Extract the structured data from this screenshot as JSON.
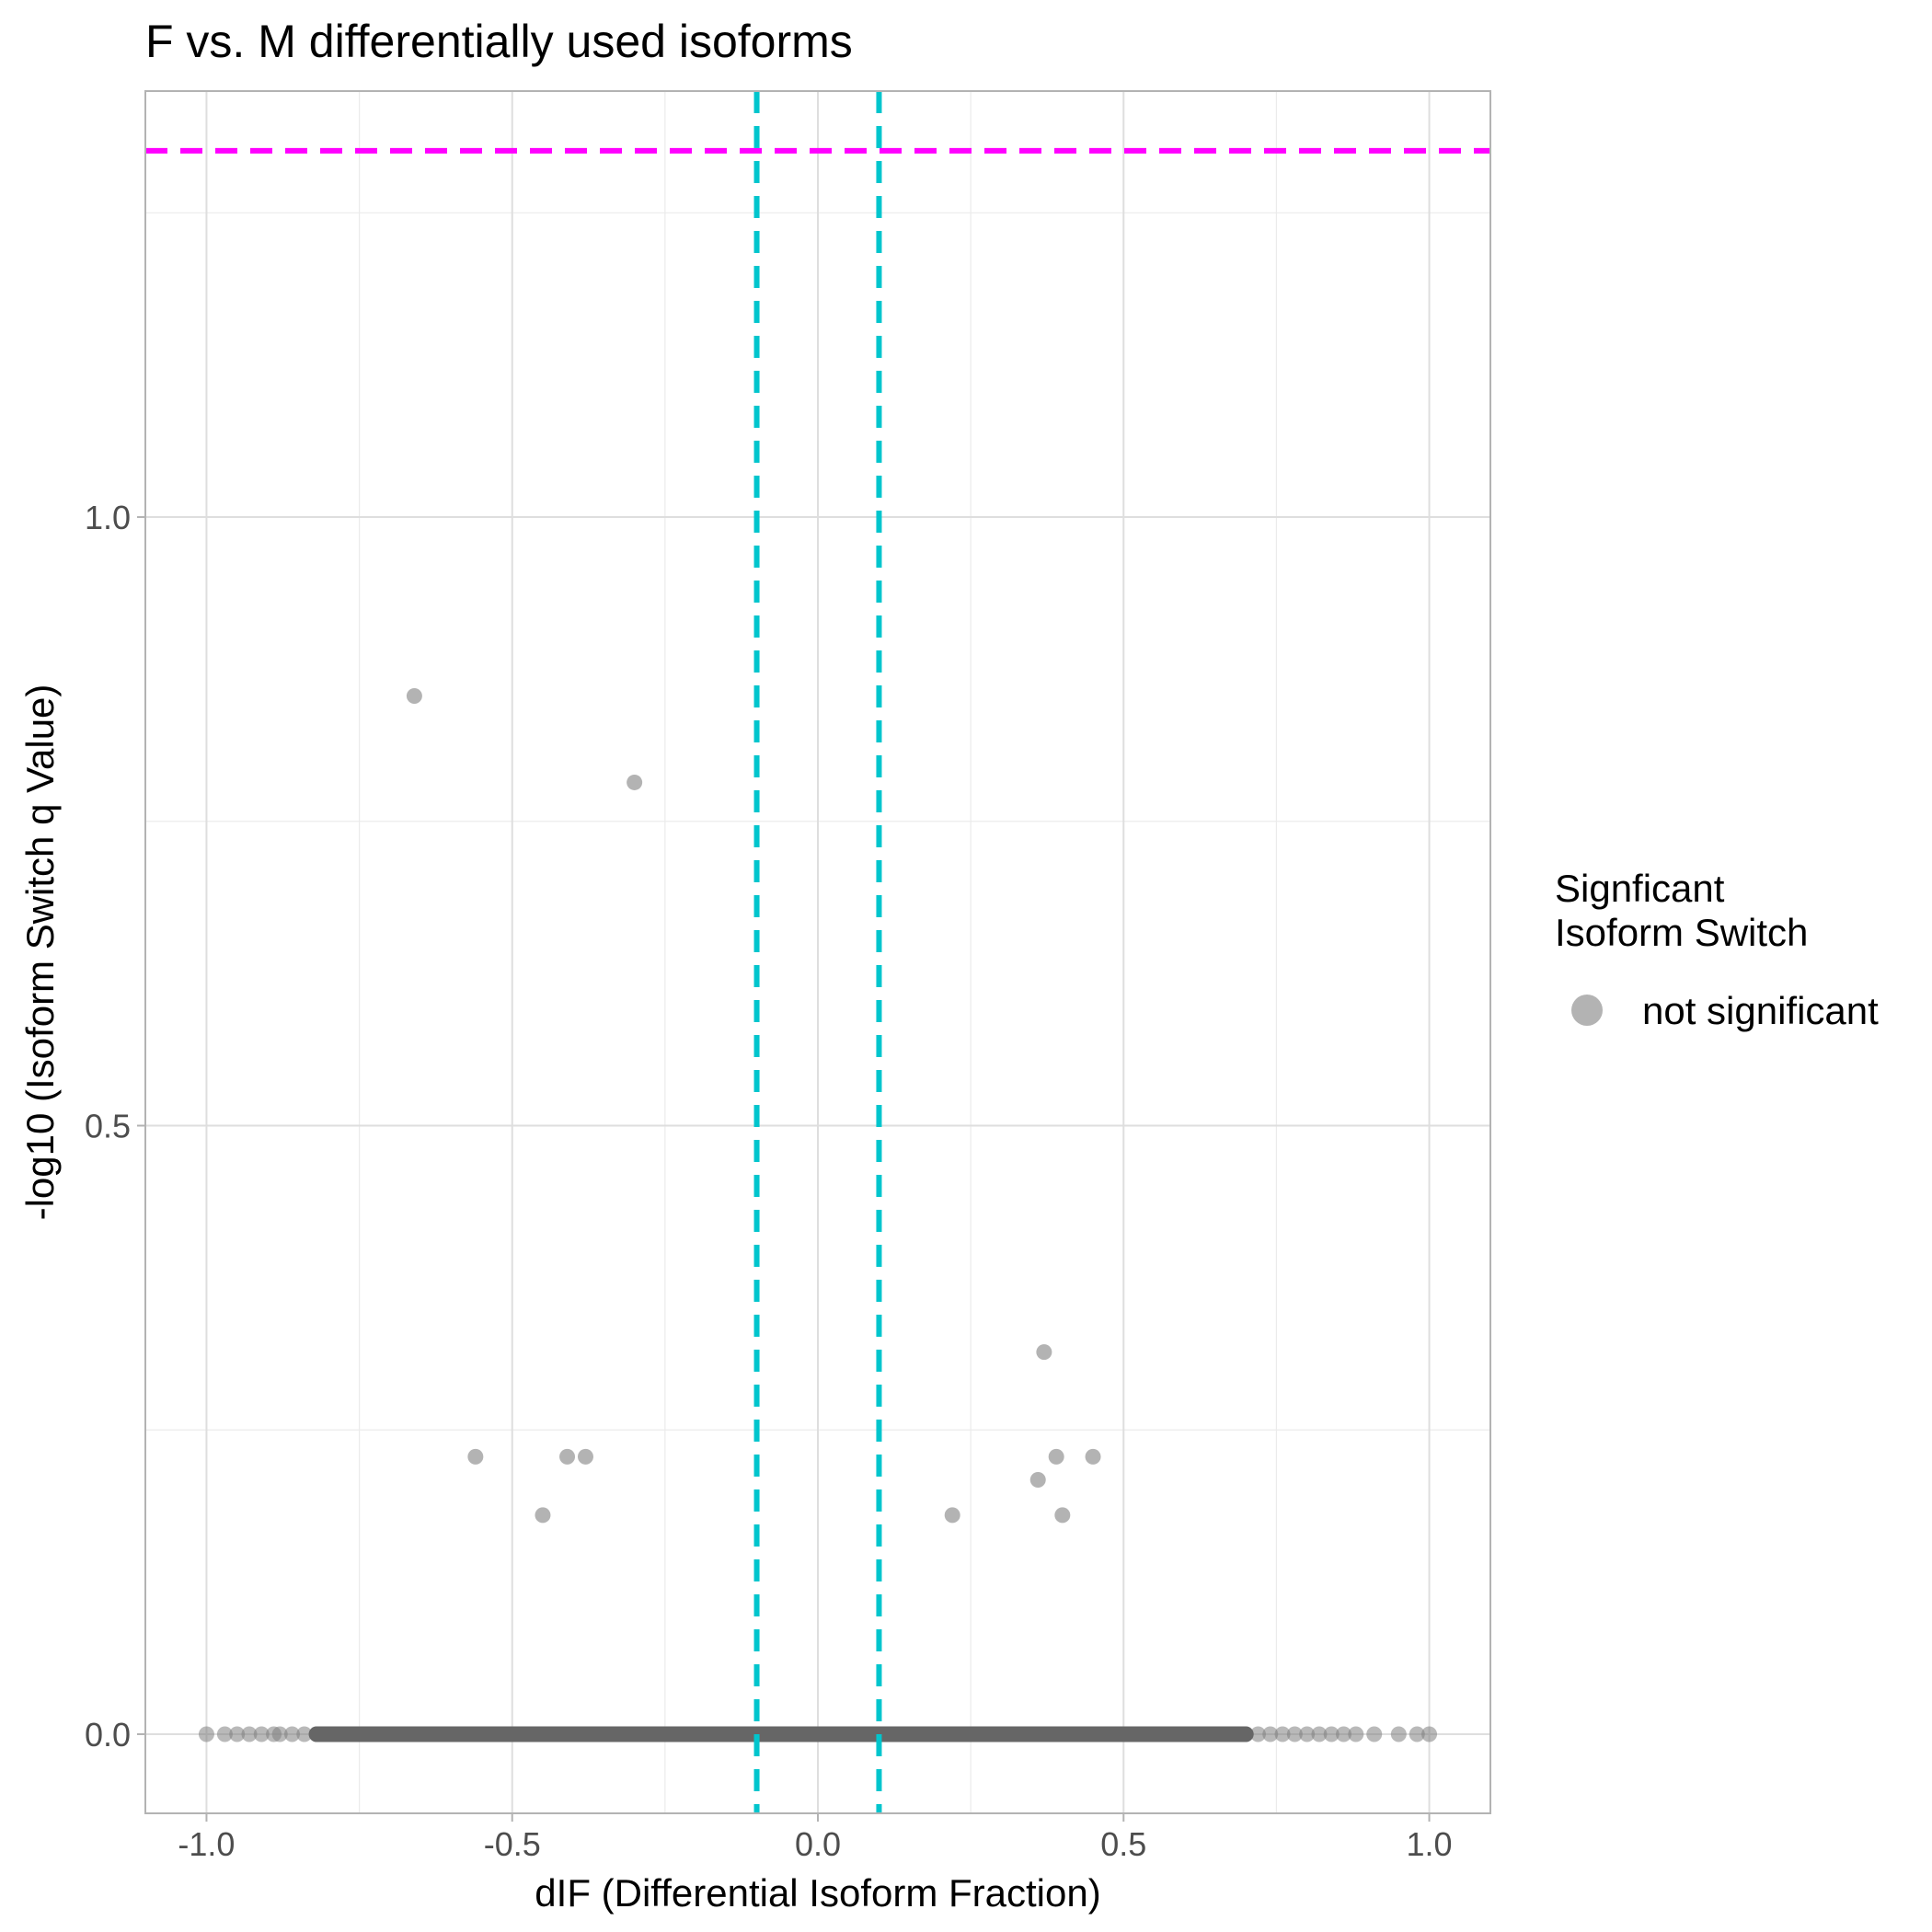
{
  "chart_data": {
    "type": "scatter",
    "title": "F vs. M differentially used isoforms",
    "xlabel": "dIF (Differential Isoform Fraction)",
    "ylabel": "-log10 (Isoform Switch q Value)",
    "xlim": [
      -1.1,
      1.1
    ],
    "ylim": [
      -0.065,
      1.35
    ],
    "x_ticks": [
      {
        "value": -1.0,
        "label": "-1.0"
      },
      {
        "value": -0.5,
        "label": "-0.5"
      },
      {
        "value": 0.0,
        "label": "0.0"
      },
      {
        "value": 0.5,
        "label": "0.5"
      },
      {
        "value": 1.0,
        "label": "1.0"
      }
    ],
    "y_ticks": [
      {
        "value": 0.0,
        "label": "0.0"
      },
      {
        "value": 0.5,
        "label": "0.5"
      },
      {
        "value": 1.0,
        "label": "1.0"
      }
    ],
    "grid": true,
    "reference_lines": [
      {
        "orientation": "horizontal",
        "value": 1.301,
        "color": "#FF00FF",
        "style": "dashed"
      },
      {
        "orientation": "vertical",
        "value": -0.1,
        "color": "#00C5CD",
        "style": "dashed"
      },
      {
        "orientation": "vertical",
        "value": 0.1,
        "color": "#00C5CD",
        "style": "dashed"
      }
    ],
    "series": [
      {
        "name": "not significant",
        "color": "#808080",
        "points": [
          {
            "x": -0.66,
            "y": 0.853
          },
          {
            "x": -0.3,
            "y": 0.782
          },
          {
            "x": -0.56,
            "y": 0.228
          },
          {
            "x": -0.41,
            "y": 0.228
          },
          {
            "x": -0.38,
            "y": 0.228
          },
          {
            "x": -0.45,
            "y": 0.18
          },
          {
            "x": 0.22,
            "y": 0.18
          },
          {
            "x": 0.37,
            "y": 0.314
          },
          {
            "x": 0.36,
            "y": 0.209
          },
          {
            "x": 0.39,
            "y": 0.228
          },
          {
            "x": 0.45,
            "y": 0.228
          },
          {
            "x": 0.4,
            "y": 0.18
          }
        ],
        "baseline_points": {
          "y": 0.0,
          "x": [
            -1.0,
            -0.97,
            -0.95,
            -0.93,
            -0.91,
            -0.89,
            -0.88,
            -0.86,
            -0.84,
            -0.82,
            -0.8,
            -0.79,
            -0.77,
            -0.75,
            -0.74,
            -0.72,
            -0.7,
            -0.68,
            -0.66,
            -0.64,
            -0.62,
            -0.6,
            -0.58,
            -0.56,
            -0.54,
            -0.52,
            -0.5,
            -0.48,
            -0.46,
            -0.44,
            -0.42,
            -0.4,
            -0.38,
            -0.36,
            -0.34,
            -0.32,
            -0.3,
            -0.28,
            -0.26,
            -0.24,
            -0.22,
            -0.2,
            -0.18,
            -0.16,
            -0.14,
            -0.12,
            -0.1,
            -0.08,
            -0.06,
            -0.04,
            -0.02,
            0.0,
            0.02,
            0.04,
            0.06,
            0.08,
            0.1,
            0.12,
            0.14,
            0.16,
            0.18,
            0.2,
            0.22,
            0.24,
            0.26,
            0.28,
            0.3,
            0.32,
            0.34,
            0.36,
            0.38,
            0.4,
            0.42,
            0.44,
            0.46,
            0.48,
            0.5,
            0.52,
            0.54,
            0.56,
            0.58,
            0.6,
            0.62,
            0.64,
            0.66,
            0.68,
            0.7,
            0.72,
            0.74,
            0.76,
            0.78,
            0.8,
            0.82,
            0.84,
            0.86,
            0.88,
            0.91,
            0.95,
            0.98,
            1.0
          ]
        }
      }
    ],
    "legend": {
      "title_lines": [
        "Signficant",
        "Isoform Switch"
      ],
      "items": [
        {
          "label": "not significant",
          "color": "#B3B3B3"
        }
      ],
      "position": "right"
    }
  }
}
